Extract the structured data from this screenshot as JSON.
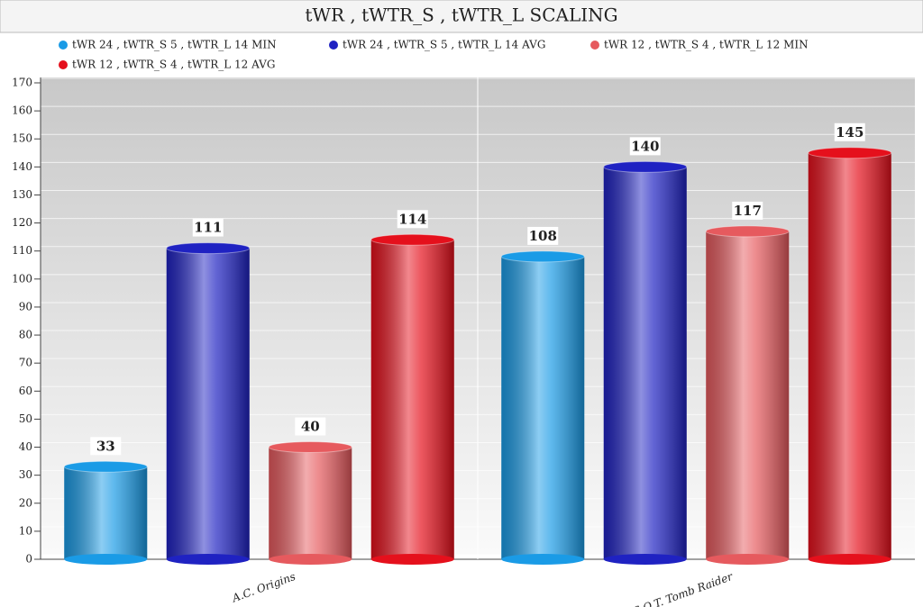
{
  "chart_data": {
    "type": "bar",
    "title": "tWR , tWTR_S , tWTR_L SCALING",
    "categories": [
      "A.C. Origins",
      "S.O.T. Tomb Raider"
    ],
    "series": [
      {
        "name": "tWR 24 , tWTR_S 5 , tWTR_L 14 MIN",
        "color": "#1a9be6",
        "values": [
          33,
          108
        ]
      },
      {
        "name": "tWR 24 , tWTR_S 5 , tWTR_L 14 AVG",
        "color": "#1f22c2",
        "values": [
          111,
          140
        ]
      },
      {
        "name": "tWR 12 , tWTR_S 4 , tWTR_L 12 MIN",
        "color": "#e65a5e",
        "values": [
          40,
          117
        ]
      },
      {
        "name": "tWR 12 , tWTR_S 4 , tWTR_L 12 AVG",
        "color": "#e5101c",
        "values": [
          114,
          145
        ]
      }
    ],
    "ylim": [
      0,
      170
    ],
    "yticks": [
      0,
      10,
      20,
      30,
      40,
      50,
      60,
      70,
      80,
      90,
      100,
      110,
      120,
      130,
      140,
      150,
      160,
      170
    ],
    "grid": true
  }
}
